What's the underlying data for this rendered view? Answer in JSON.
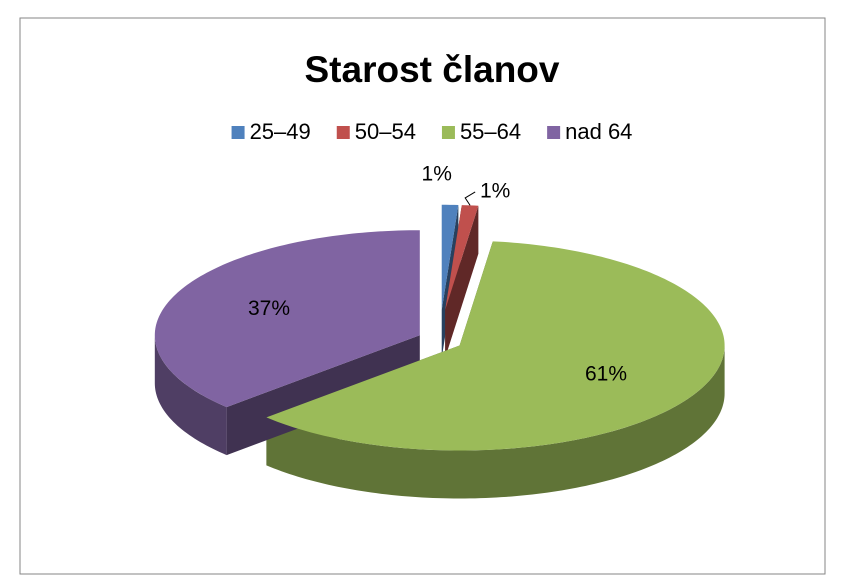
{
  "chart_data": {
    "type": "pie",
    "title": "Starost članov",
    "categories": [
      "25–49",
      "50–54",
      "55–64",
      "nad 64"
    ],
    "values": [
      1,
      1,
      61,
      37
    ],
    "value_labels": [
      "1%",
      "1%",
      "61%",
      "37%"
    ],
    "colors": [
      "#4f81bd",
      "#c0504d",
      "#9bbb59",
      "#8064a2"
    ],
    "legend": "top"
  }
}
